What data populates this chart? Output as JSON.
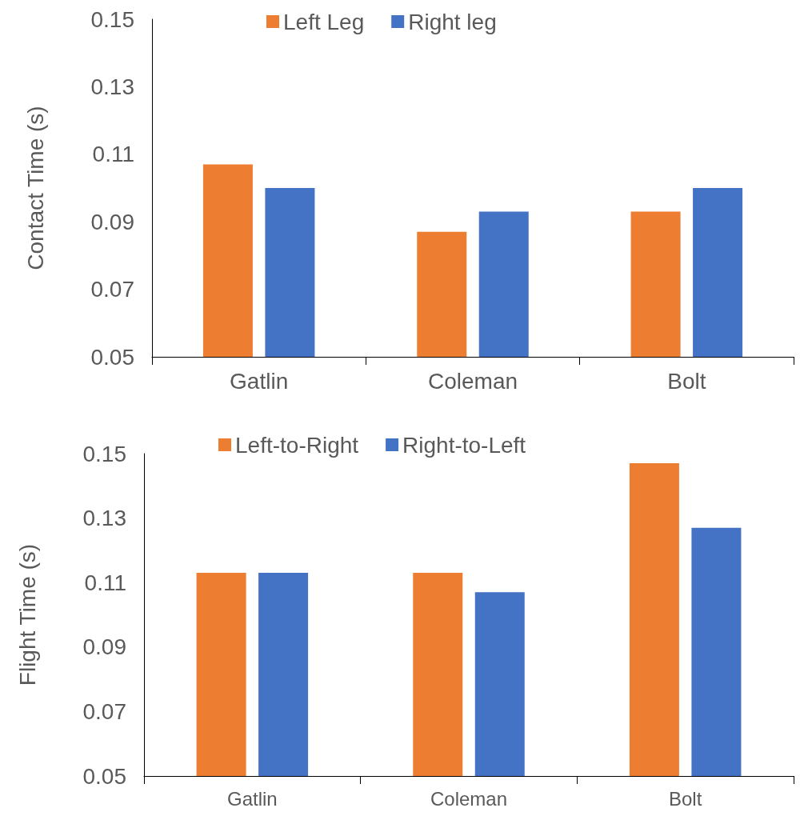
{
  "chart_data": [
    {
      "type": "bar",
      "ylabel": "Contact Time (s)",
      "categories": [
        "Gatlin",
        "Coleman",
        "Bolt"
      ],
      "series": [
        {
          "name": "Left Leg",
          "color": "#ed7d31",
          "values": [
            0.107,
            0.087,
            0.093
          ]
        },
        {
          "name": "Right leg",
          "color": "#4472c4",
          "values": [
            0.1,
            0.093,
            0.1
          ]
        }
      ],
      "ylim": [
        0.05,
        0.15
      ],
      "yticks": [
        0.05,
        0.07,
        0.09,
        0.11,
        0.13,
        0.15
      ],
      "legend": "top"
    },
    {
      "type": "bar",
      "ylabel": "Flight Time (s)",
      "categories": [
        "Gatlin",
        "Coleman",
        "Bolt"
      ],
      "series": [
        {
          "name": "Left-to-Right",
          "color": "#ed7d31",
          "values": [
            0.113,
            0.113,
            0.147
          ]
        },
        {
          "name": "Right-to-Left",
          "color": "#4472c4",
          "values": [
            0.113,
            0.107,
            0.127
          ]
        }
      ],
      "ylim": [
        0.05,
        0.15
      ],
      "yticks": [
        0.05,
        0.07,
        0.09,
        0.11,
        0.13,
        0.15
      ],
      "legend": "top"
    }
  ]
}
